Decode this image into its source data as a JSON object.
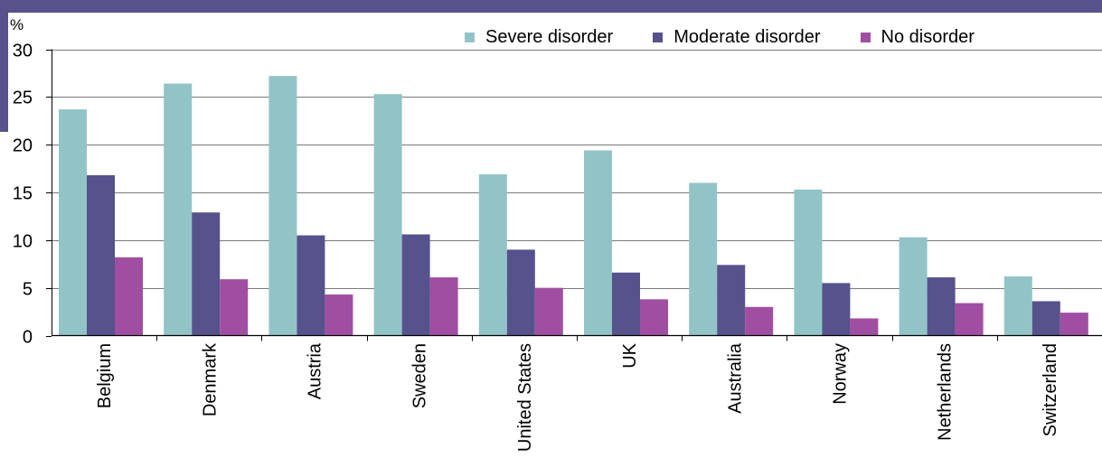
{
  "chart_data": {
    "type": "bar",
    "unit_label": "%",
    "categories": [
      "Belgium",
      "Denmark",
      "Austria",
      "Sweden",
      "United States",
      "UK",
      "Australia",
      "Norway",
      "Netherlands",
      "Switzerland"
    ],
    "series": [
      {
        "name": "Severe disorder",
        "color": "#92c4c7",
        "values": [
          23.7,
          26.4,
          27.2,
          25.3,
          16.9,
          19.4,
          16.0,
          15.3,
          10.3,
          6.2
        ]
      },
      {
        "name": "Moderate disorder",
        "color": "#56528c",
        "values": [
          16.8,
          12.9,
          10.5,
          10.6,
          9.0,
          6.6,
          7.4,
          5.5,
          6.1,
          3.6
        ]
      },
      {
        "name": "No disorder",
        "color": "#a04ea2",
        "values": [
          8.2,
          5.9,
          4.3,
          6.1,
          5.0,
          3.8,
          3.0,
          1.8,
          3.4,
          2.4
        ]
      }
    ],
    "ylim": [
      0,
      30
    ],
    "yticks": [
      0,
      5,
      10,
      15,
      20,
      25,
      30
    ],
    "grid": true,
    "legend_position": "top-right"
  }
}
